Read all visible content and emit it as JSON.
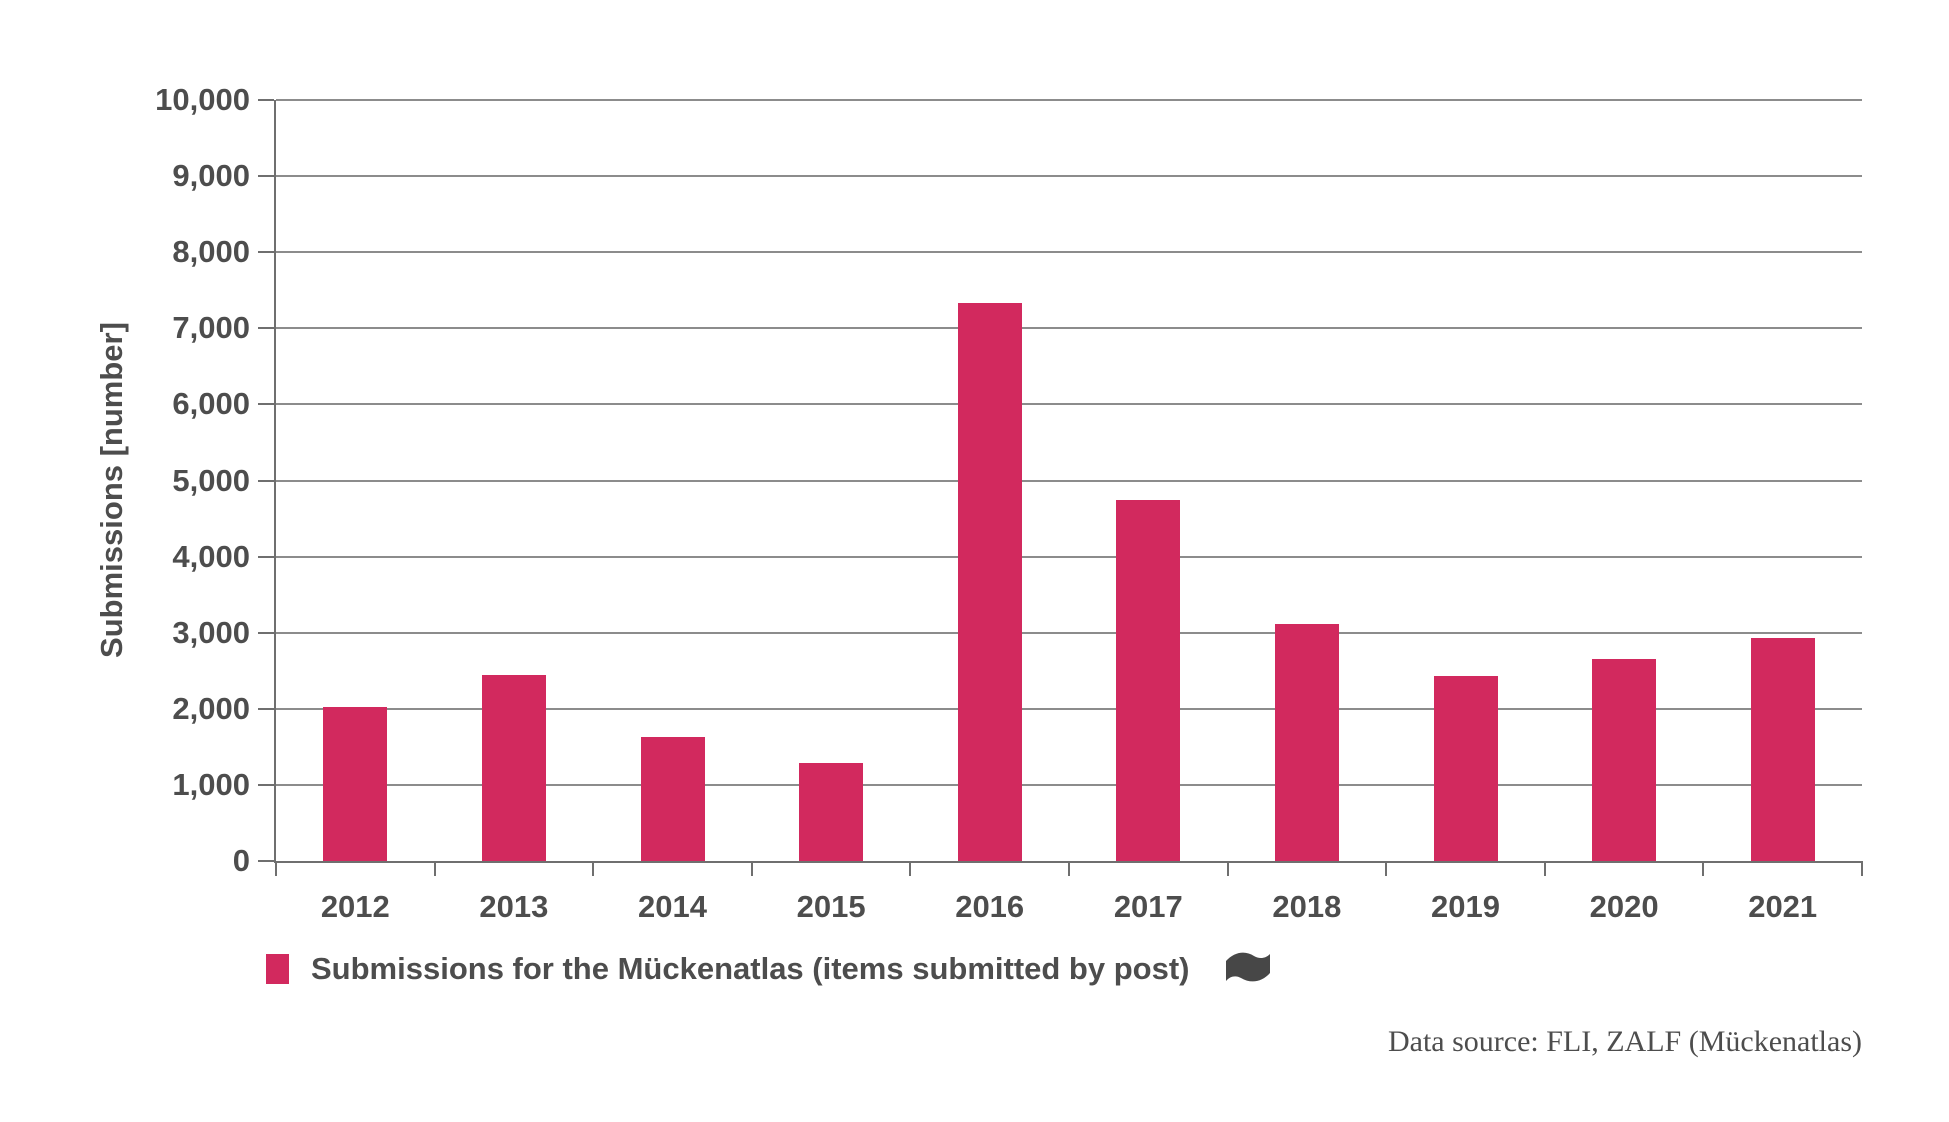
{
  "chart": {
    "y_axis_title": "Submissions [number]",
    "legend": {
      "label": "Submissions for the Mückenatlas (items submitted by post)",
      "swatch_color": "#d2295e",
      "flag_icon": "wave-flag-icon"
    },
    "source_note": "Data source: FLI, ZALF (Mückenatlas)"
  },
  "chart_data": {
    "type": "bar",
    "title": "",
    "categories": [
      "2012",
      "2013",
      "2014",
      "2015",
      "2016",
      "2017",
      "2018",
      "2019",
      "2020",
      "2021"
    ],
    "series": [
      {
        "name": "Submissions for the Mückenatlas (items submitted by post)",
        "values": [
          2020,
          2440,
          1630,
          1290,
          7330,
          4750,
          3110,
          2430,
          2660,
          2930
        ]
      }
    ],
    "xlabel": "",
    "ylabel": "Submissions [number]",
    "ylim": [
      0,
      10000
    ],
    "ytick_step": 1000,
    "ytick_labels": [
      "0",
      "1,000",
      "2,000",
      "3,000",
      "4,000",
      "5,000",
      "6,000",
      "7,000",
      "8,000",
      "9,000",
      "10,000"
    ],
    "grid": "horizontal",
    "legend_position": "bottom-left",
    "bar_color": "#d2295e",
    "gridline_color": "#8c8c8c",
    "axis_color": "#6f6f6f",
    "text_color": "#4d4d4d"
  }
}
